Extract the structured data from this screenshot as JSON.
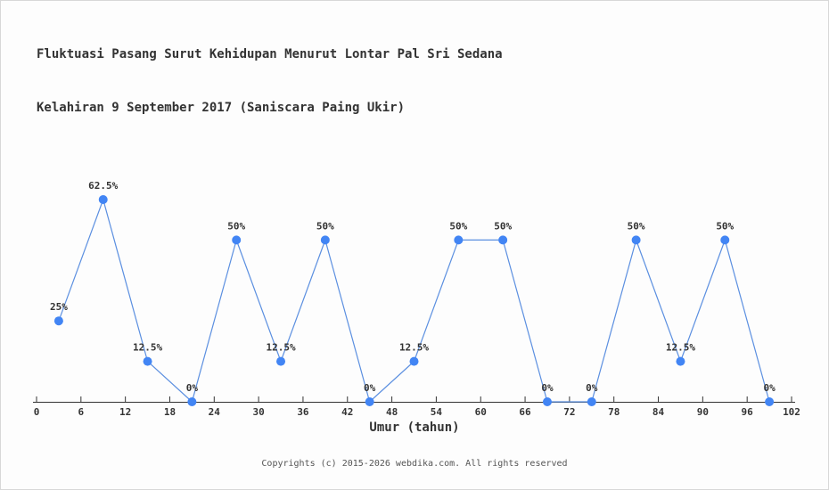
{
  "title": {
    "line1": "Fluktuasi Pasang Surut Kehidupan Menurut Lontar Pal Sri Sedana",
    "line2": "Kelahiran 9 September 2017 (Saniscara Paing Ukir)"
  },
  "footer": {
    "copyright": "Copyrights (c) 2015-2026 webdika.com. All rights reserved"
  },
  "chart_data": {
    "type": "line",
    "x": [
      3,
      9,
      15,
      21,
      27,
      33,
      39,
      45,
      51,
      57,
      63,
      69,
      75,
      81,
      87,
      93,
      99
    ],
    "values": [
      25,
      62.5,
      12.5,
      0,
      50,
      12.5,
      50,
      0,
      12.5,
      50,
      50,
      0,
      0,
      50,
      12.5,
      50,
      0
    ],
    "point_labels": [
      "25%",
      "62.5%",
      "12.5%",
      "0%",
      "50%",
      "12.5%",
      "50%",
      "0%",
      "12.5%",
      "50%",
      "50%",
      "0%",
      "0%",
      "50%",
      "12.5%",
      "50%",
      "0%"
    ],
    "x_ticks": [
      0,
      6,
      12,
      18,
      24,
      30,
      36,
      42,
      48,
      54,
      60,
      66,
      72,
      78,
      84,
      90,
      96,
      102
    ],
    "xlabel": "Umur (tahun)",
    "ylabel": "",
    "xlim": [
      0,
      102
    ],
    "ylim": [
      0,
      100
    ],
    "grid": false,
    "legend": "none",
    "line_color": "#5b8fe0",
    "marker_color": "#4285f4",
    "axis_color": "#333333",
    "label_color": "#333333"
  }
}
